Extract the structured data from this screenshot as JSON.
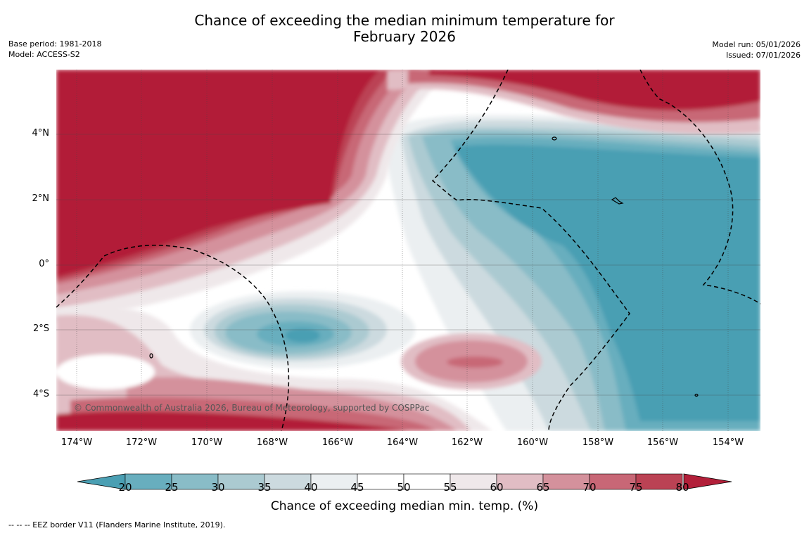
{
  "title": {
    "line1": "Chance of exceeding the median minimum temperature for",
    "line2": "February 2026"
  },
  "meta_left": {
    "base_period": "Base period: 1981-2018",
    "model": "Model: ACCESS-S2"
  },
  "meta_right": {
    "model_run": "Model run: 05/01/2026",
    "issued": "Issued: 07/01/2026"
  },
  "map": {
    "lat_labels": [
      "4°N",
      "2°N",
      "0°",
      "2°S",
      "4°S"
    ],
    "lon_labels": [
      "174°W",
      "172°W",
      "170°W",
      "168°W",
      "166°W",
      "164°W",
      "162°W",
      "160°W",
      "158°W",
      "156°W",
      "154°W"
    ],
    "copyright": "© Commonwealth of Australia 2026, Bureau of Meteorology, supported by COSPPac"
  },
  "colorbar": {
    "ticks": [
      "20",
      "25",
      "30",
      "35",
      "40",
      "45",
      "50",
      "55",
      "60",
      "65",
      "70",
      "75",
      "80"
    ],
    "colors": [
      "#4a9fb3",
      "#68aebe",
      "#89bcc7",
      "#abcad1",
      "#ccdadf",
      "#ebeff1",
      "#ffffff",
      "#ffffff",
      "#efe8ea",
      "#e1bdc4",
      "#d4919c",
      "#c86776",
      "#bb4254",
      "#b21f39"
    ],
    "label": "Chance of exceeding median min. temp. (%)"
  },
  "footer": "--  --  -- EEZ border V11 (Flanders Marine Institute, 2019)."
}
